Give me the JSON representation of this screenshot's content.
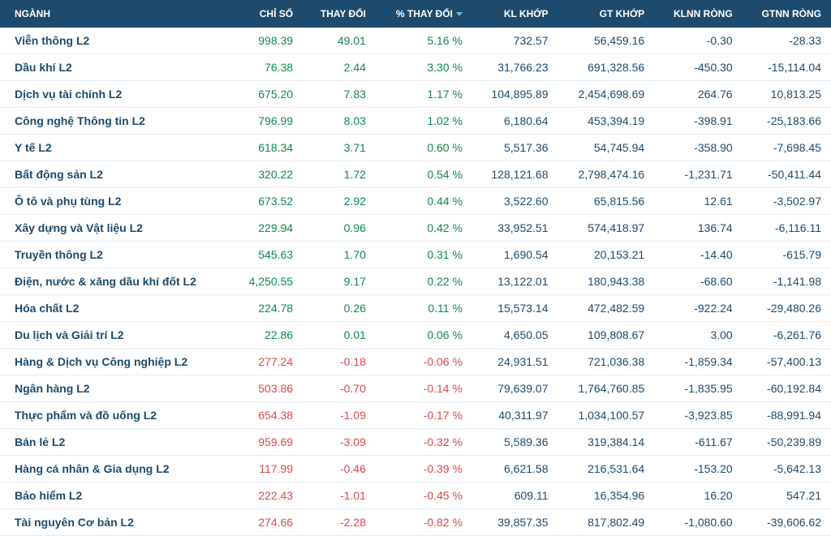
{
  "table": {
    "header_bg": "#1e4b6d",
    "header_fg": "#ffffff",
    "row_border": "#e6ecf1",
    "text_color": "#1e4b6d",
    "pos_color": "#0f8a4b",
    "neg_color": "#d84a4a",
    "sorted_col_index": 3,
    "columns": [
      {
        "key": "nganh",
        "label": "NGÀNH",
        "align": "left"
      },
      {
        "key": "chiso",
        "label": "CHỈ SỐ",
        "align": "right"
      },
      {
        "key": "thaydoi",
        "label": "THAY ĐỔI",
        "align": "right"
      },
      {
        "key": "pctthaydoi",
        "label": "% THAY ĐỔI",
        "align": "right"
      },
      {
        "key": "klkhop",
        "label": "KL KHỚP",
        "align": "right"
      },
      {
        "key": "gtkhop",
        "label": "GT KHỚP",
        "align": "right"
      },
      {
        "key": "klnnrong",
        "label": "KLNN RÒNG",
        "align": "right"
      },
      {
        "key": "gtnnrong",
        "label": "GTNN RÒNG",
        "align": "right"
      }
    ],
    "rows": [
      {
        "nganh": "Viễn thông L2",
        "chiso": "998.39",
        "thaydoi": "49.01",
        "pctthaydoi": "5.16 %",
        "klkhop": "732.57",
        "gtkhop": "56,459.16",
        "klnnrong": "-0.30",
        "gtnnrong": "-28.33",
        "dir": "pos"
      },
      {
        "nganh": "Dầu khí L2",
        "chiso": "76.38",
        "thaydoi": "2.44",
        "pctthaydoi": "3.30 %",
        "klkhop": "31,766.23",
        "gtkhop": "691,328.56",
        "klnnrong": "-450.30",
        "gtnnrong": "-15,114.04",
        "dir": "pos"
      },
      {
        "nganh": "Dịch vụ tài chính L2",
        "chiso": "675.20",
        "thaydoi": "7.83",
        "pctthaydoi": "1.17 %",
        "klkhop": "104,895.89",
        "gtkhop": "2,454,698.69",
        "klnnrong": "264.76",
        "gtnnrong": "10,813.25",
        "dir": "pos"
      },
      {
        "nganh": "Công nghệ Thông tin L2",
        "chiso": "796.99",
        "thaydoi": "8.03",
        "pctthaydoi": "1.02 %",
        "klkhop": "6,180.64",
        "gtkhop": "453,394.19",
        "klnnrong": "-398.91",
        "gtnnrong": "-25,183.66",
        "dir": "pos"
      },
      {
        "nganh": "Y tế L2",
        "chiso": "618.34",
        "thaydoi": "3.71",
        "pctthaydoi": "0.60 %",
        "klkhop": "5,517.36",
        "gtkhop": "54,745.94",
        "klnnrong": "-358.90",
        "gtnnrong": "-7,698.45",
        "dir": "pos"
      },
      {
        "nganh": "Bất động sản L2",
        "chiso": "320.22",
        "thaydoi": "1.72",
        "pctthaydoi": "0.54 %",
        "klkhop": "128,121.68",
        "gtkhop": "2,798,474.16",
        "klnnrong": "-1,231.71",
        "gtnnrong": "-50,411.44",
        "dir": "pos"
      },
      {
        "nganh": "Ô tô và phụ tùng L2",
        "chiso": "673.52",
        "thaydoi": "2.92",
        "pctthaydoi": "0.44 %",
        "klkhop": "3,522.60",
        "gtkhop": "65,815.56",
        "klnnrong": "12.61",
        "gtnnrong": "-3,502.97",
        "dir": "pos"
      },
      {
        "nganh": "Xây dựng và Vật liệu L2",
        "chiso": "229.94",
        "thaydoi": "0.96",
        "pctthaydoi": "0.42 %",
        "klkhop": "33,952.51",
        "gtkhop": "574,418.97",
        "klnnrong": "136.74",
        "gtnnrong": "-6,116.11",
        "dir": "pos"
      },
      {
        "nganh": "Truyền thông L2",
        "chiso": "545.63",
        "thaydoi": "1.70",
        "pctthaydoi": "0.31 %",
        "klkhop": "1,690.54",
        "gtkhop": "20,153.21",
        "klnnrong": "-14.40",
        "gtnnrong": "-615.79",
        "dir": "pos"
      },
      {
        "nganh": "Điện, nước & xăng dầu khí đốt L2",
        "chiso": "4,250.55",
        "thaydoi": "9.17",
        "pctthaydoi": "0.22 %",
        "klkhop": "13,122.01",
        "gtkhop": "180,943.38",
        "klnnrong": "-68.60",
        "gtnnrong": "-1,141.98",
        "dir": "pos"
      },
      {
        "nganh": "Hóa chất L2",
        "chiso": "224.78",
        "thaydoi": "0.26",
        "pctthaydoi": "0.11 %",
        "klkhop": "15,573.14",
        "gtkhop": "472,482.59",
        "klnnrong": "-922.24",
        "gtnnrong": "-29,480.26",
        "dir": "pos"
      },
      {
        "nganh": "Du lịch và Giải trí L2",
        "chiso": "22.86",
        "thaydoi": "0.01",
        "pctthaydoi": "0.06 %",
        "klkhop": "4,650.05",
        "gtkhop": "109,808.67",
        "klnnrong": "3.00",
        "gtnnrong": "-6,261.76",
        "dir": "pos"
      },
      {
        "nganh": "Hàng & Dịch vụ Công nghiệp L2",
        "chiso": "277.24",
        "thaydoi": "-0.18",
        "pctthaydoi": "-0.06 %",
        "klkhop": "24,931.51",
        "gtkhop": "721,036.38",
        "klnnrong": "-1,859.34",
        "gtnnrong": "-57,400.13",
        "dir": "neg"
      },
      {
        "nganh": "Ngân hàng L2",
        "chiso": "503.86",
        "thaydoi": "-0.70",
        "pctthaydoi": "-0.14 %",
        "klkhop": "79,639.07",
        "gtkhop": "1,764,760.85",
        "klnnrong": "-1,835.95",
        "gtnnrong": "-60,192.84",
        "dir": "neg"
      },
      {
        "nganh": "Thực phẩm và đồ uống L2",
        "chiso": "654.38",
        "thaydoi": "-1.09",
        "pctthaydoi": "-0.17 %",
        "klkhop": "40,311.97",
        "gtkhop": "1,034,100.57",
        "klnnrong": "-3,923.85",
        "gtnnrong": "-88,991.94",
        "dir": "neg"
      },
      {
        "nganh": "Bán lẻ L2",
        "chiso": "959.69",
        "thaydoi": "-3.09",
        "pctthaydoi": "-0.32 %",
        "klkhop": "5,589.36",
        "gtkhop": "319,384.14",
        "klnnrong": "-611.67",
        "gtnnrong": "-50,239.89",
        "dir": "neg"
      },
      {
        "nganh": "Hàng cá nhân & Gia dụng L2",
        "chiso": "117.99",
        "thaydoi": "-0.46",
        "pctthaydoi": "-0.39 %",
        "klkhop": "6,621.58",
        "gtkhop": "216,531.64",
        "klnnrong": "-153.20",
        "gtnnrong": "-5,642.13",
        "dir": "neg"
      },
      {
        "nganh": "Bảo hiểm L2",
        "chiso": "222.43",
        "thaydoi": "-1.01",
        "pctthaydoi": "-0.45 %",
        "klkhop": "609.11",
        "gtkhop": "16,354.96",
        "klnnrong": "16.20",
        "gtnnrong": "547.21",
        "dir": "neg"
      },
      {
        "nganh": "Tài nguyên Cơ bản L2",
        "chiso": "274.66",
        "thaydoi": "-2.28",
        "pctthaydoi": "-0.82 %",
        "klkhop": "39,857.35",
        "gtkhop": "817,802.49",
        "klnnrong": "-1,080.60",
        "gtnnrong": "-39,606.62",
        "dir": "neg"
      }
    ]
  }
}
